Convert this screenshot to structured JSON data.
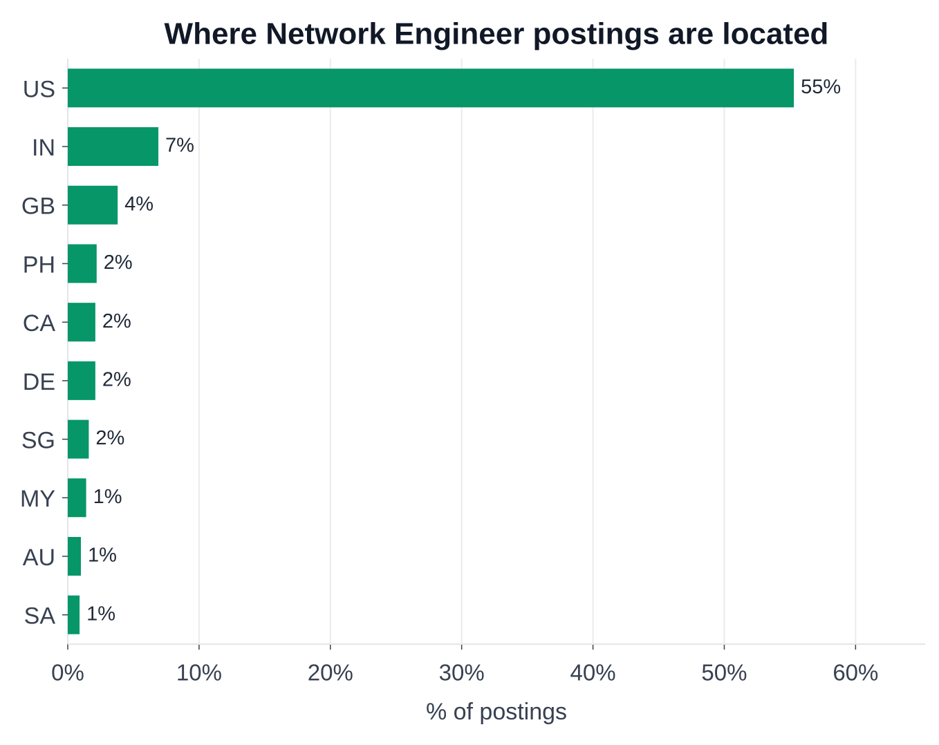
{
  "chart_data": {
    "type": "bar",
    "orientation": "horizontal",
    "title": "Where Network Engineer postings are located",
    "x_label": "% of postings",
    "categories": [
      "US",
      "IN",
      "GB",
      "PH",
      "CA",
      "DE",
      "SG",
      "MY",
      "AU",
      "SA"
    ],
    "values": [
      55.3,
      6.9,
      3.8,
      2.2,
      2.1,
      2.1,
      1.6,
      1.4,
      1.0,
      0.9
    ],
    "value_labels": [
      "55%",
      "7%",
      "4%",
      "2%",
      "2%",
      "2%",
      "2%",
      "1%",
      "1%",
      "1%"
    ],
    "color": "#069668",
    "xlim": [
      0,
      65.3
    ],
    "xticks": [
      {
        "value": 0,
        "label": "0%"
      },
      {
        "value": 10,
        "label": "10%"
      },
      {
        "value": 20,
        "label": "20%"
      },
      {
        "value": 30,
        "label": "30%"
      },
      {
        "value": 40,
        "label": "40%"
      },
      {
        "value": 50,
        "label": "50%"
      },
      {
        "value": 60,
        "label": "60%"
      }
    ],
    "grid": true
  }
}
